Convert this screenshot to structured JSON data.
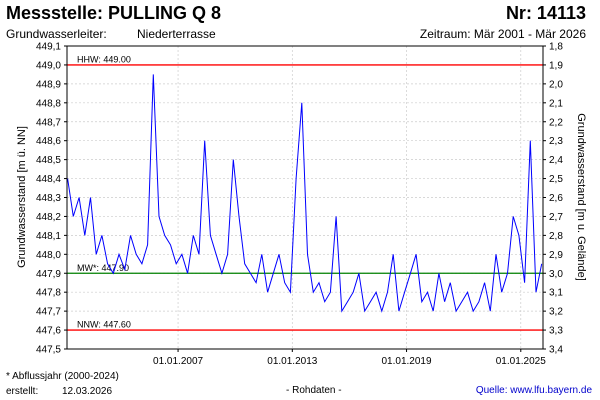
{
  "header": {
    "title": "Messstelle: PULLING Q 8",
    "number": "Nr: 14113",
    "aquifer_label": "Grundwasserleiter:",
    "aquifer_value": "Niederterrasse",
    "period": "Zeitraum: Mär 2001 - Mär 2026"
  },
  "footer": {
    "note": "* Abflussjahr (2000-2024)",
    "created_label": "erstellt:",
    "created_value": "12.03.2026",
    "rawdata": "- Rohdaten -",
    "source": "Quelle: www.lfu.bayern.de"
  },
  "colors": {
    "series": "#0000ff",
    "hhw": "#ff0000",
    "nnw": "#ff0000",
    "mw": "#008000",
    "grid": "#cccccc"
  },
  "chart_data": {
    "type": "line",
    "title": "",
    "ylabel": "Grundwasserstand [m ü. NN]",
    "y2label": "Grundwasserstand [m u. Gelände]",
    "xlabel": "",
    "grid": true,
    "xlim": [
      "2001-03",
      "2026-03"
    ],
    "ylim": [
      447.5,
      449.1
    ],
    "y2lim": [
      3.4,
      1.8
    ],
    "x_ticks": [
      "01.01.2007",
      "01.01.2013",
      "01.01.2019",
      "01.01.2025"
    ],
    "y_ticks": [
      "447,5",
      "447,6",
      "447,7",
      "447,8",
      "447,9",
      "448,0",
      "448,1",
      "448,2",
      "448,3",
      "448,4",
      "448,5",
      "448,6",
      "448,7",
      "448,8",
      "448,9",
      "449,0",
      "449,1"
    ],
    "y2_ticks": [
      "3,4",
      "3,3",
      "3,2",
      "3,1",
      "3,0",
      "2,9",
      "2,8",
      "2,7",
      "2,6",
      "2,5",
      "2,4",
      "2,3",
      "2,2",
      "2,1",
      "2,0",
      "1,9",
      "1,8"
    ],
    "reference_lines": [
      {
        "key": "hhw",
        "label": "HHW: 449.00",
        "value": 449.0
      },
      {
        "key": "mw",
        "label": "MW*: 447.90",
        "value": 447.9
      },
      {
        "key": "nnw",
        "label": "NNW: 447.60",
        "value": 447.6
      }
    ],
    "series": [
      {
        "x": [
          2001.2,
          2001.5,
          2001.8,
          2002.1,
          2002.4,
          2002.7,
          2003.0,
          2003.3,
          2003.6,
          2003.9,
          2004.2,
          2004.5,
          2004.8,
          2005.1,
          2005.4,
          2005.7,
          2006.0,
          2006.3,
          2006.6,
          2006.9,
          2007.2,
          2007.5,
          2007.8,
          2008.1,
          2008.4,
          2008.7,
          2009.0,
          2009.3,
          2009.6,
          2009.9,
          2010.2,
          2010.5,
          2010.8,
          2011.1,
          2011.4,
          2011.7,
          2012.0,
          2012.3,
          2012.6,
          2012.9,
          2013.2,
          2013.5,
          2013.8,
          2014.1,
          2014.4,
          2014.7,
          2015.0,
          2015.3,
          2015.6,
          2015.9,
          2016.2,
          2016.5,
          2016.8,
          2017.1,
          2017.4,
          2017.7,
          2018.0,
          2018.3,
          2018.6,
          2018.9,
          2019.2,
          2019.5,
          2019.8,
          2020.1,
          2020.4,
          2020.7,
          2021.0,
          2021.3,
          2021.6,
          2021.9,
          2022.2,
          2022.5,
          2022.8,
          2023.1,
          2023.4,
          2023.7,
          2024.0,
          2024.3,
          2024.6,
          2024.9,
          2025.2,
          2025.5,
          2025.8,
          2026.1
        ],
        "y": [
          448.4,
          448.2,
          448.3,
          448.1,
          448.3,
          448.0,
          448.1,
          447.95,
          447.9,
          448.0,
          447.92,
          448.1,
          448.0,
          447.95,
          448.05,
          448.95,
          448.2,
          448.1,
          448.05,
          447.95,
          448.0,
          447.9,
          448.1,
          448.0,
          448.6,
          448.1,
          448.0,
          447.9,
          448.0,
          448.5,
          448.2,
          447.95,
          447.9,
          447.85,
          448.0,
          447.8,
          447.9,
          448.0,
          447.85,
          447.8,
          448.4,
          448.8,
          448.0,
          447.8,
          447.85,
          447.75,
          447.8,
          448.2,
          447.7,
          447.75,
          447.8,
          447.9,
          447.7,
          447.75,
          447.8,
          447.7,
          447.8,
          448.0,
          447.7,
          447.8,
          447.9,
          448.0,
          447.75,
          447.8,
          447.7,
          447.9,
          447.75,
          447.85,
          447.7,
          447.75,
          447.8,
          447.7,
          447.75,
          447.85,
          447.7,
          448.0,
          447.8,
          447.9,
          448.2,
          448.1,
          447.85,
          448.6,
          447.8,
          447.95
        ]
      }
    ]
  }
}
